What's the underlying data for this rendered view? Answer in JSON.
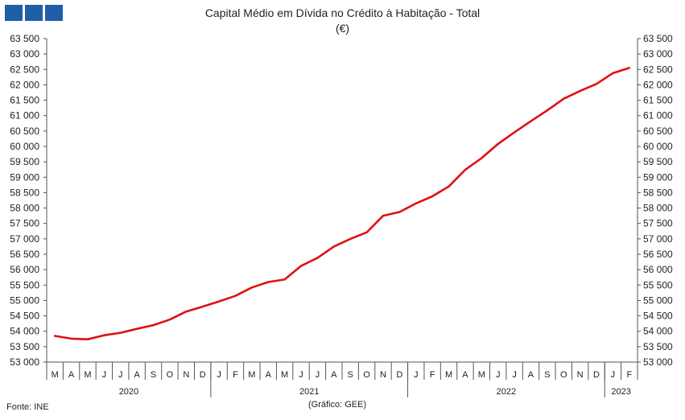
{
  "title": "Capital Médio em Dívida no Crédito à Habitação - Total",
  "subtitle": "(€)",
  "source": "Fonte: INE",
  "credit": "(Gráfico: GEE)",
  "colors": {
    "line": "#e01010",
    "brand": "#1f5fa8",
    "axis": "#555555"
  },
  "chart_data": {
    "type": "line",
    "title": "Capital Médio em Dívida no Crédito à Habitação - Total",
    "subtitle": "(€)",
    "ylim": [
      53000,
      63500
    ],
    "ytick_step": 500,
    "y_ticks": [
      "53 000",
      "53 500",
      "54 000",
      "54 500",
      "55 000",
      "55 500",
      "56 000",
      "56 500",
      "57 000",
      "57 500",
      "58 000",
      "58 500",
      "59 000",
      "59 500",
      "60 000",
      "60 500",
      "61 000",
      "61 500",
      "62 000",
      "62 500",
      "63 000",
      "63 500"
    ],
    "grid": false,
    "categories": [
      "M",
      "A",
      "M",
      "J",
      "J",
      "A",
      "S",
      "O",
      "N",
      "D",
      "J",
      "F",
      "M",
      "A",
      "M",
      "J",
      "J",
      "A",
      "S",
      "O",
      "N",
      "D",
      "J",
      "F",
      "M",
      "A",
      "M",
      "J",
      "J",
      "A",
      "S",
      "O",
      "N",
      "D",
      "J",
      "F"
    ],
    "years": [
      {
        "label": "2020",
        "count": 10
      },
      {
        "label": "2021",
        "count": 12
      },
      {
        "label": "2022",
        "count": 12
      },
      {
        "label": "2023",
        "count": 2
      }
    ],
    "series": [
      {
        "values": [
          53850,
          53760,
          53740,
          53870,
          53950,
          54080,
          54200,
          54380,
          54640,
          54800,
          54970,
          55150,
          55420,
          55600,
          55680,
          56120,
          56380,
          56750,
          57000,
          57210,
          57750,
          57870,
          58150,
          58380,
          58700,
          59240,
          59620,
          60080,
          60460,
          60820,
          61170,
          61550,
          61800,
          62030,
          62380,
          62550
        ]
      }
    ]
  }
}
